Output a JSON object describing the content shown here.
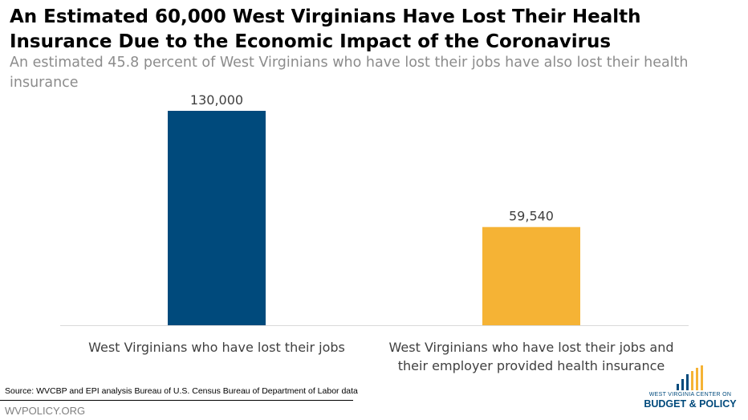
{
  "chart_data": {
    "type": "bar",
    "title": "An Estimated 60,000 West Virginians Have Lost Their Health Insurance Due to the Economic Impact of the Coronavirus",
    "subtitle": "An estimated 45.8 percent of West Virginians who have lost their jobs have also lost their health insurance",
    "categories": [
      "West Virginians who have lost their jobs",
      "West Virginians who have lost their jobs and their employer provided health insurance"
    ],
    "values": [
      130000,
      59540
    ],
    "value_labels": [
      "130,000",
      "59,540"
    ],
    "colors": [
      "#004a7c",
      "#f5b335"
    ]
  },
  "footer": {
    "source": "Source: WVCBP and EPI analysis Bureau of U.S. Census Bureau of Department of Labor data",
    "website": "WVPOLICY.ORG",
    "logo_line1": "WEST VIRGINIA CENTER ON",
    "logo_line2": "BUDGET & POLICY"
  }
}
